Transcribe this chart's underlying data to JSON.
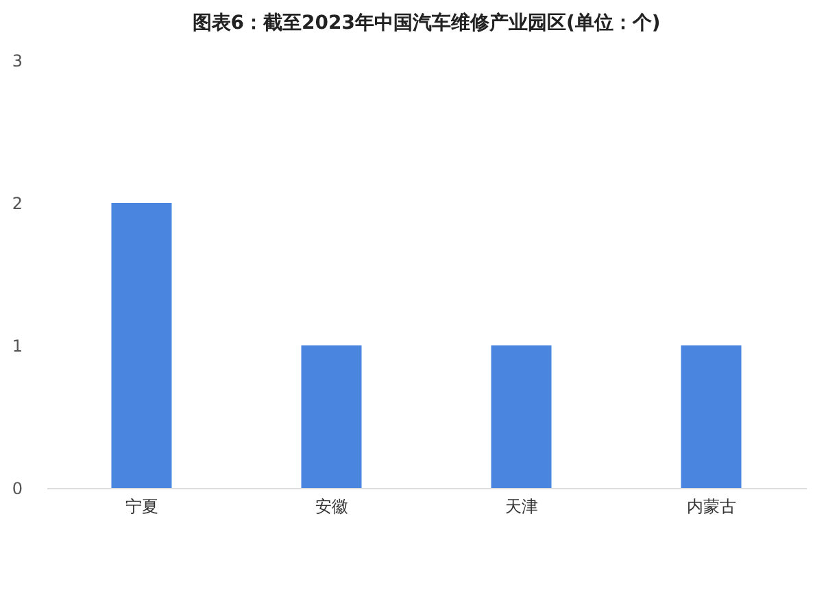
{
  "chart_data": {
    "type": "bar",
    "title": "图表6：截至2023年中国汽车维修产业园区(单位：个)",
    "categories": [
      "宁夏",
      "安徽",
      "天津",
      "内蒙古"
    ],
    "values": [
      2,
      1,
      1,
      1
    ],
    "color": "#4a86e0",
    "ylim": [
      0,
      3
    ],
    "yticks": [
      0,
      1,
      2,
      3
    ],
    "grid": false
  }
}
